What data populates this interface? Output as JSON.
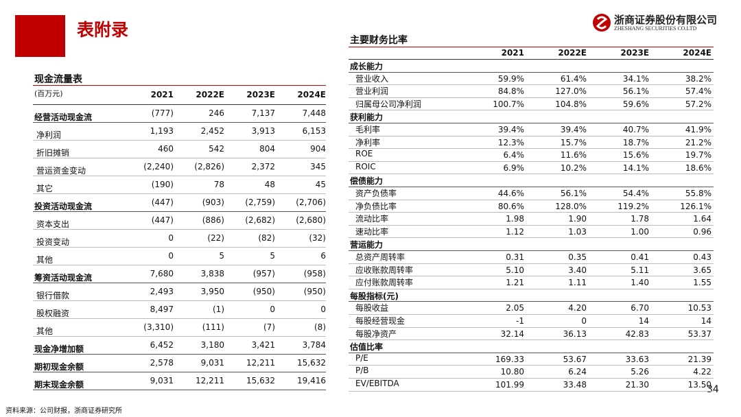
{
  "header": {
    "title": "表附录",
    "logo_cn": "浙商证券股份有限公司",
    "logo_en": "ZHESHANG SECURITIES CO.LTD"
  },
  "cash_flow": {
    "title": "现金流量表",
    "unit": "(百万元)",
    "columns": [
      "2021",
      "2022E",
      "2023E",
      "2024E"
    ],
    "rows": [
      {
        "label": "经营活动现金流",
        "bold": true,
        "values": [
          "(777)",
          "246",
          "7,137",
          "7,448"
        ]
      },
      {
        "label": "净利润",
        "bold": false,
        "values": [
          "1,193",
          "2,452",
          "3,913",
          "6,153"
        ]
      },
      {
        "label": "折旧摊销",
        "bold": false,
        "values": [
          "460",
          "542",
          "804",
          "904"
        ]
      },
      {
        "label": "营运资金变动",
        "bold": false,
        "values": [
          "(2,240)",
          "(2,826)",
          "2,372",
          "345"
        ]
      },
      {
        "label": "其它",
        "bold": false,
        "values": [
          "(190)",
          "78",
          "48",
          "45"
        ]
      },
      {
        "label": "投资活动现金流",
        "bold": true,
        "values": [
          "(447)",
          "(903)",
          "(2,759)",
          "(2,706)"
        ]
      },
      {
        "label": "资本支出",
        "bold": false,
        "values": [
          "(447)",
          "(886)",
          "(2,682)",
          "(2,680)"
        ]
      },
      {
        "label": "投资变动",
        "bold": false,
        "values": [
          "0",
          "(22)",
          "(82)",
          "(32)"
        ]
      },
      {
        "label": "其他",
        "bold": false,
        "values": [
          "0",
          "5",
          "5",
          "6"
        ]
      },
      {
        "label": "筹资活动现金流",
        "bold": true,
        "values": [
          "7,680",
          "3,838",
          "(957)",
          "(958)"
        ]
      },
      {
        "label": "银行借款",
        "bold": false,
        "values": [
          "2,493",
          "3,950",
          "(950)",
          "(950)"
        ]
      },
      {
        "label": "股权融资",
        "bold": false,
        "values": [
          "8,497",
          "(1)",
          "0",
          "0"
        ]
      },
      {
        "label": "其他",
        "bold": false,
        "values": [
          "(3,310)",
          "(111)",
          "(7)",
          "(8)"
        ]
      },
      {
        "label": "现金净增加额",
        "bold": true,
        "values": [
          "6,452",
          "3,180",
          "3,421",
          "3,784"
        ]
      },
      {
        "label": "期初现金余额",
        "bold": true,
        "values": [
          "2,578",
          "9,031",
          "12,211",
          "15,632"
        ]
      },
      {
        "label": "期末现金余额",
        "bold": true,
        "values": [
          "9,031",
          "12,211",
          "15,632",
          "19,416"
        ]
      }
    ]
  },
  "ratios": {
    "title": "主要财务比率",
    "columns": [
      "2021",
      "2022E",
      "2023E",
      "2024E"
    ],
    "sections": [
      {
        "name": "成长能力",
        "rows": [
          {
            "label": "营业收入",
            "values": [
              "59.9%",
              "61.4%",
              "34.1%",
              "38.2%"
            ]
          },
          {
            "label": "营业利润",
            "values": [
              "84.8%",
              "127.0%",
              "56.1%",
              "57.4%"
            ]
          },
          {
            "label": "归属母公司净利润",
            "values": [
              "100.7%",
              "104.8%",
              "59.6%",
              "57.2%"
            ]
          }
        ]
      },
      {
        "name": "获利能力",
        "rows": [
          {
            "label": "毛利率",
            "values": [
              "39.4%",
              "39.4%",
              "40.7%",
              "41.9%"
            ]
          },
          {
            "label": "净利率",
            "values": [
              "12.3%",
              "15.7%",
              "18.7%",
              "21.2%"
            ]
          },
          {
            "label": "ROE",
            "values": [
              "6.4%",
              "11.6%",
              "15.6%",
              "19.7%"
            ]
          },
          {
            "label": "ROIC",
            "values": [
              "6.9%",
              "10.2%",
              "14.1%",
              "18.6%"
            ]
          }
        ]
      },
      {
        "name": "偿债能力",
        "rows": [
          {
            "label": "资产负债率",
            "values": [
              "44.6%",
              "56.1%",
              "54.4%",
              "55.8%"
            ]
          },
          {
            "label": "净负债比率",
            "values": [
              "80.6%",
              "128.0%",
              "119.2%",
              "126.1%"
            ]
          },
          {
            "label": "流动比率",
            "values": [
              "1.98",
              "1.90",
              "1.78",
              "1.64"
            ]
          },
          {
            "label": "速动比率",
            "values": [
              "1.12",
              "1.03",
              "1.00",
              "0.96"
            ]
          }
        ]
      },
      {
        "name": "营运能力",
        "rows": [
          {
            "label": "总资产周转率",
            "values": [
              "0.31",
              "0.35",
              "0.41",
              "0.43"
            ]
          },
          {
            "label": "应收账款周转率",
            "values": [
              "5.10",
              "3.40",
              "5.11",
              "3.65"
            ]
          },
          {
            "label": "应付账款周转率",
            "values": [
              "1.21",
              "1.11",
              "1.40",
              "1.55"
            ]
          }
        ]
      },
      {
        "name": "每股指标(元)",
        "rows": [
          {
            "label": "每股收益",
            "values": [
              "2.05",
              "4.20",
              "6.70",
              "10.53"
            ]
          },
          {
            "label": "每股经营现金",
            "values": [
              "-1",
              "0",
              "14",
              "14"
            ]
          },
          {
            "label": "每股净资产",
            "values": [
              "32.14",
              "36.13",
              "42.83",
              "53.37"
            ]
          }
        ]
      },
      {
        "name": "估值比率",
        "rows": [
          {
            "label": "P/E",
            "values": [
              "169.33",
              "53.67",
              "33.63",
              "21.39"
            ]
          },
          {
            "label": "P/B",
            "values": [
              "10.80",
              "6.24",
              "5.26",
              "4.22"
            ]
          },
          {
            "label": "EV/EBITDA",
            "values": [
              "101.99",
              "33.48",
              "21.30",
              "13.50"
            ]
          }
        ]
      }
    ]
  },
  "footer": {
    "source": "资料来源：公司财报，浙商证券研究所",
    "page": "34"
  }
}
